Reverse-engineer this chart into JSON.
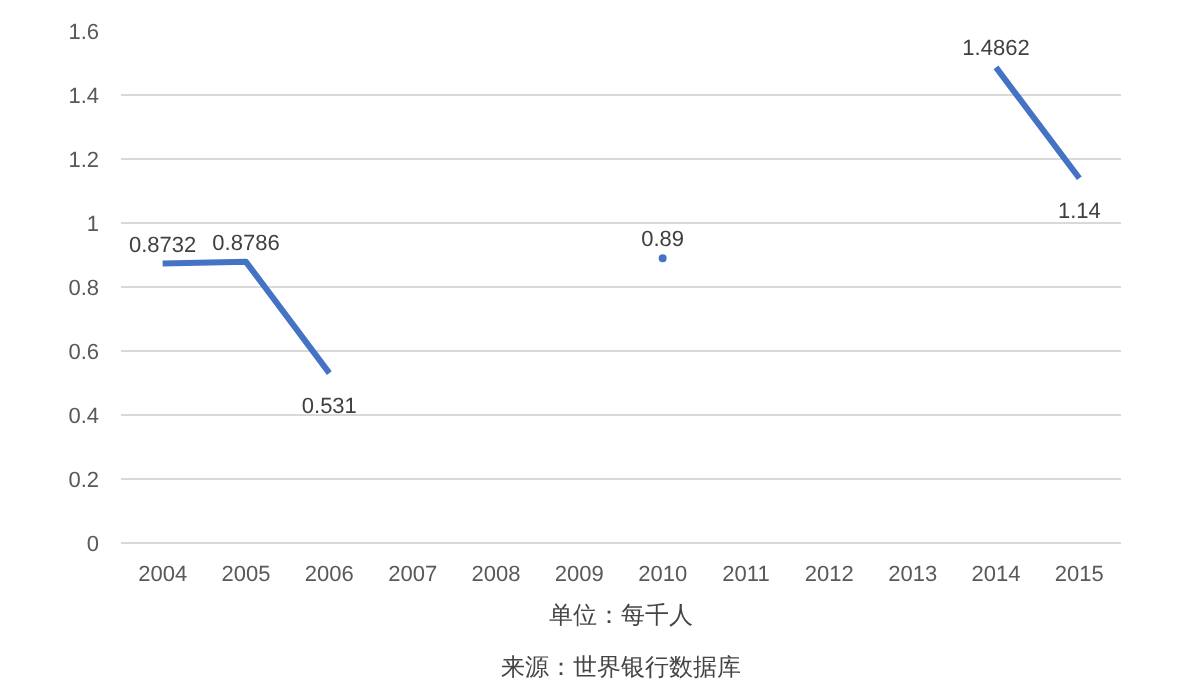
{
  "chart_data": {
    "type": "line",
    "categories": [
      "2004",
      "2005",
      "2006",
      "2007",
      "2008",
      "2009",
      "2010",
      "2011",
      "2012",
      "2013",
      "2014",
      "2015"
    ],
    "series": [
      {
        "color": "#4472c4",
        "values": [
          0.8732,
          0.8786,
          0.531,
          null,
          null,
          null,
          0.89,
          null,
          null,
          null,
          1.4862,
          1.14
        ]
      }
    ],
    "ylim": [
      0,
      1.6
    ],
    "yticks": [
      0,
      0.2,
      0.4,
      0.6,
      0.8,
      1,
      1.2,
      1.4,
      1.6
    ],
    "grid": "y",
    "data_labels": true,
    "marker": "none",
    "line_style": "solid",
    "annotations": [
      "单位：每千人",
      "来源：世界银行数据库"
    ]
  }
}
